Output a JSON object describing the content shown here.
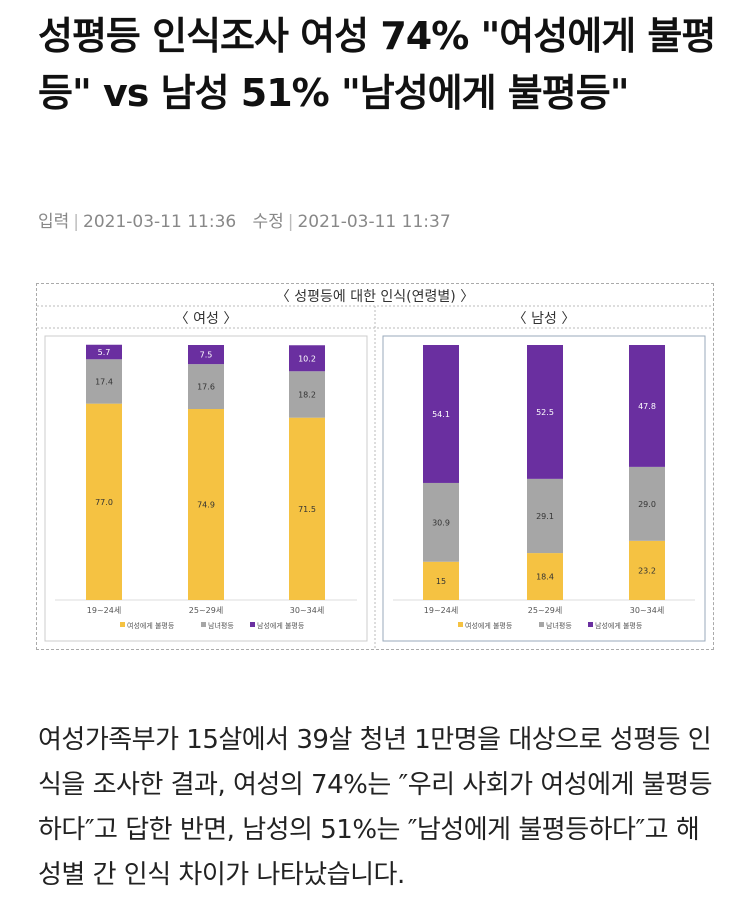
{
  "article": {
    "title": "성평등 인식조사 여성 74% \"여성에게 불평등\" vs 남성 51% \"남성에게 불평등\"",
    "input_label": "입력",
    "input_time": "2021-03-11 11:36",
    "edit_label": "수정",
    "edit_time": "2021-03-11 11:37",
    "body": "여성가족부가 15살에서 39살 청년 1만명을 대상으로 성평등 인식을 조사한 결과, 여성의 74%는 ″우리 사회가 여성에게 불평등하다″고 답한 반면, 남성의 51%는 ″남성에게 불평등하다″고 해 성별 간 인식 차이가 나타났습니다."
  },
  "colors": {
    "women_unequal": "#f5c242",
    "equal": "#a6a6a6",
    "men_unequal": "#6a2fa0"
  },
  "chart_data": [
    {
      "type": "bar",
      "stacked": true,
      "title": "〈 성평등에 대한 인식(연령별) 〉",
      "subtitle": "〈 여성 〉",
      "categories": [
        "19~24세",
        "25~29세",
        "30~34세"
      ],
      "series": [
        {
          "name": "여성에게 불평등",
          "values": [
            77.0,
            74.9,
            71.5
          ]
        },
        {
          "name": "남녀평등",
          "values": [
            17.4,
            17.6,
            18.2
          ]
        },
        {
          "name": "남성에게 불평등",
          "values": [
            5.7,
            7.5,
            10.2
          ]
        }
      ],
      "ylim": [
        0,
        100
      ],
      "legend": "bottom"
    },
    {
      "type": "bar",
      "stacked": true,
      "subtitle": "〈 남성 〉",
      "categories": [
        "19~24세",
        "25~29세",
        "30~34세"
      ],
      "series": [
        {
          "name": "여성에게 불평등",
          "values": [
            15,
            18.4,
            23.2
          ]
        },
        {
          "name": "남녀평등",
          "values": [
            30.9,
            29.1,
            29.0
          ]
        },
        {
          "name": "남성에게 불평등",
          "values": [
            54.1,
            52.5,
            47.8
          ]
        }
      ],
      "ylim": [
        0,
        100
      ],
      "legend": "bottom"
    }
  ]
}
